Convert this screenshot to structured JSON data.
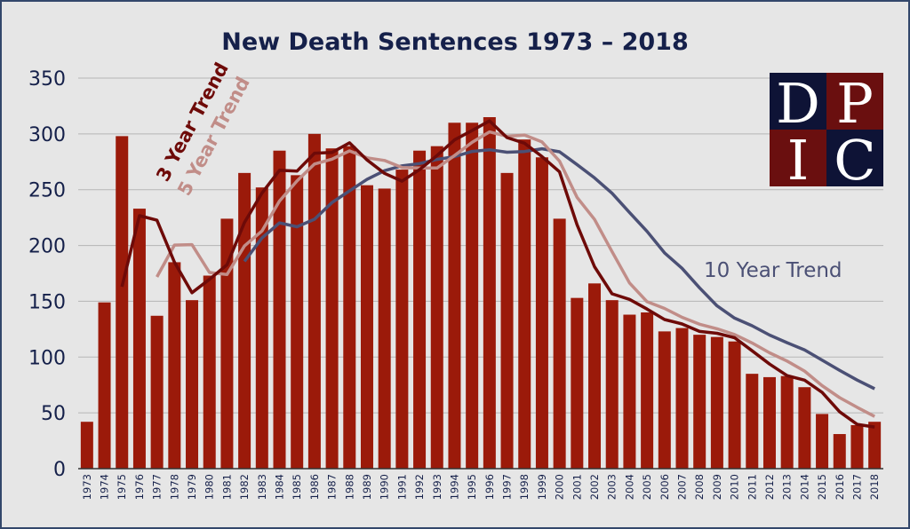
{
  "chart_data": {
    "type": "bar",
    "title": "New Death Sentences 1973 – 2018",
    "xlabel": "",
    "ylabel": "",
    "ylim": [
      0,
      350
    ],
    "yticks": [
      0,
      50,
      100,
      150,
      200,
      250,
      300,
      350
    ],
    "grid": true,
    "categories": [
      "1973",
      "1974",
      "1975",
      "1976",
      "1977",
      "1978",
      "1979",
      "1980",
      "1981",
      "1982",
      "1983",
      "1984",
      "1985",
      "1986",
      "1987",
      "1988",
      "1989",
      "1990",
      "1991",
      "1992",
      "1993",
      "1994",
      "1995",
      "1996",
      "1997",
      "1998",
      "1999",
      "2000",
      "2001",
      "2002",
      "2003",
      "2004",
      "2005",
      "2006",
      "2007",
      "2008",
      "2009",
      "2010",
      "2011",
      "2012",
      "2013",
      "2014",
      "2015",
      "2016",
      "2017",
      "2018"
    ],
    "values": [
      42,
      149,
      298,
      233,
      137,
      185,
      151,
      173,
      224,
      265,
      252,
      285,
      263,
      300,
      287,
      289,
      254,
      251,
      268,
      285,
      289,
      310,
      310,
      315,
      265,
      295,
      279,
      224,
      153,
      166,
      151,
      138,
      140,
      123,
      126,
      120,
      118,
      114,
      85,
      82,
      83,
      73,
      49,
      31,
      39,
      42
    ],
    "bar_color": "#9b1a0a",
    "trend_lines": [
      {
        "name": "3 Year Trend",
        "window": 3,
        "color": "#6e0a08"
      },
      {
        "name": "5 Year Trend",
        "window": 5,
        "color": "#c18d88"
      },
      {
        "name": "10 Year Trend",
        "window": 10,
        "color": "#4b5075"
      }
    ]
  },
  "logo": {
    "letters": [
      "D",
      "P",
      "I",
      "C"
    ],
    "colors": [
      "#0e1336",
      "#6a0f0f",
      "#6a0f0f",
      "#0e1336"
    ]
  }
}
